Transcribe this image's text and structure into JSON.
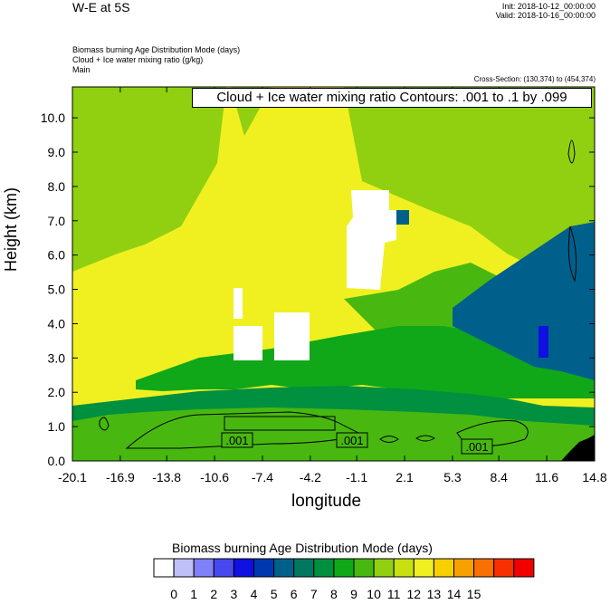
{
  "header": {
    "title": "W-E at 5S",
    "init": "Init: 2018-10-12_00:00:00",
    "valid": "Valid: 2018-10-16_00:00:00",
    "subtitles": [
      "Biomass burning Age Distribution Mode    (days)",
      "Cloud + Ice water mixing ratio    (g/kg)",
      "Main"
    ],
    "cross_section": "Cross-Section: (130,374) to (454,374)"
  },
  "contour_label": "Cloud + Ice water mixing ratio Contours: .001 to .1 by .099",
  "contour_values": [
    ".001",
    ".001",
    ".001"
  ],
  "chart_data": {
    "type": "heatmap",
    "xlabel": "longitude",
    "ylabel": "Height (km)",
    "x_ticks": [
      "-20.1",
      "-16.9",
      "-13.8",
      "-10.6",
      "-7.4",
      "-4.2",
      "-1.1",
      "2.1",
      "5.3",
      "8.4",
      "11.6",
      "14.8"
    ],
    "y_ticks": [
      "0.0",
      "1.0",
      "2.0",
      "3.0",
      "4.0",
      "5.0",
      "6.0",
      "7.0",
      "8.0",
      "9.0",
      "10.0"
    ],
    "xlim": [
      -20.1,
      14.8
    ],
    "ylim": [
      0.0,
      10.9
    ],
    "colorbar": {
      "title": "Biomass burning Age Distribution Mode  (days)",
      "levels": [
        "0",
        "1",
        "2",
        "3",
        "4",
        "5",
        "6",
        "7",
        "8",
        "9",
        "10",
        "11",
        "12",
        "13",
        "14",
        "15"
      ],
      "colors": [
        "#ffffff",
        "#c0c0f8",
        "#8080f8",
        "#4848f0",
        "#1010e0",
        "#0038b0",
        "#00608c",
        "#007860",
        "#009040",
        "#10a818",
        "#48b810",
        "#90d010",
        "#c8e010",
        "#f0f020",
        "#f8d000",
        "#f8a000",
        "#f87000",
        "#f83000",
        "#f00000"
      ]
    },
    "regions_days": {
      "background_upper": 11,
      "band_upper_yellow": 13,
      "mid_green": 9,
      "lower_green": 8,
      "lower_green_light": 10,
      "east_blue": 6,
      "east_dark_blue": 4,
      "white_patches": 0
    },
    "grid": false
  }
}
